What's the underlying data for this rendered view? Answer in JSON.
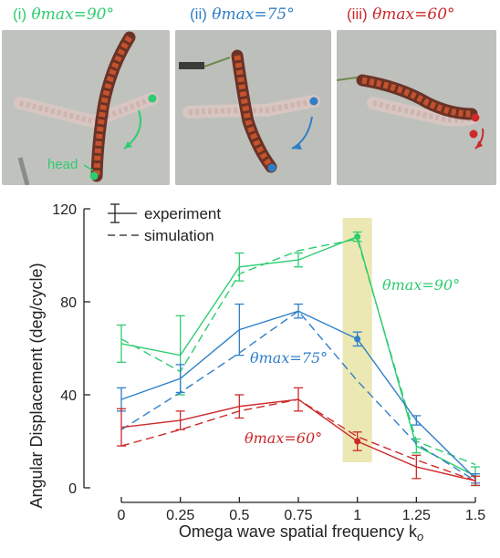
{
  "panels": [
    {
      "roman": "(i)",
      "theta_label": "θmax=90°",
      "color": "#2ecc71"
    },
    {
      "roman": "(ii)",
      "theta_label": "θmax=75°",
      "color": "#2f7fc8"
    },
    {
      "roman": "(iii)",
      "theta_label": "θmax=60°",
      "color": "#cc2a2a"
    }
  ],
  "head_label": "head",
  "chart_data": {
    "type": "line",
    "xlabel": "Omega wave spatial frequency k",
    "xlabel_sub": "o",
    "ylabel": "Angular Displacement (deg/cycle)",
    "xlim": [
      0,
      1.5
    ],
    "ylim": [
      0,
      120
    ],
    "xticks": [
      "0",
      "0.25",
      "0.5",
      "0.75",
      "1",
      "1.25",
      "1.5"
    ],
    "xtick_values": [
      0,
      0.25,
      0.5,
      0.75,
      1,
      1.25,
      1.5
    ],
    "yticks": [
      "0",
      "40",
      "80",
      "120"
    ],
    "ytick_values": [
      0,
      40,
      80,
      120
    ],
    "x": [
      0,
      0.25,
      0.5,
      0.75,
      1,
      1.25,
      1.5
    ],
    "highlight_x": 1,
    "highlight_color": "#e8e4a6",
    "legend": {
      "experiment": "experiment",
      "simulation": "simulation"
    },
    "series": [
      {
        "label": "θmax=90°",
        "color": "#2ecc71",
        "experiment": [
          62,
          57,
          95,
          98,
          108,
          18,
          5
        ],
        "error": [
          8,
          17,
          6,
          3,
          2,
          3,
          4
        ],
        "simulation": [
          64,
          50,
          92,
          102,
          107,
          20,
          10
        ]
      },
      {
        "label": "θmax=75°",
        "color": "#2f7fc8",
        "experiment": [
          38,
          47,
          68,
          76,
          64,
          29,
          4
        ],
        "error": [
          5,
          6,
          11,
          3,
          3,
          2,
          2
        ],
        "simulation": [
          25,
          41,
          58,
          76,
          46,
          19,
          3
        ]
      },
      {
        "label": "θmax=60°",
        "color": "#cc2a2a",
        "experiment": [
          26,
          29,
          35,
          38,
          20,
          9,
          3
        ],
        "error": [
          8,
          4,
          5,
          5,
          4,
          5,
          2
        ],
        "simulation": [
          18,
          25,
          33,
          38,
          22,
          12,
          3
        ]
      }
    ]
  }
}
